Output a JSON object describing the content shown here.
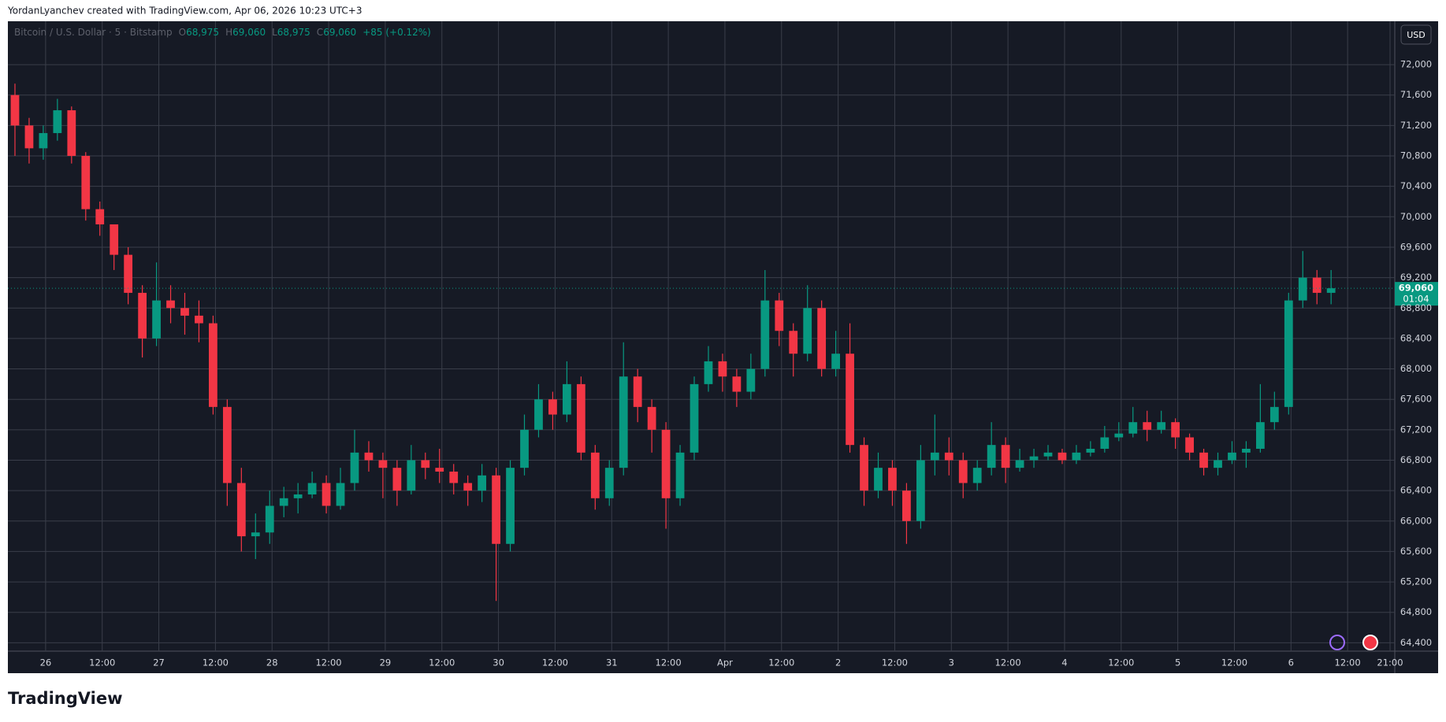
{
  "header": "YordanLyanchev created with TradingView.com, Apr 06, 2026 10:23 UTC+3",
  "brand": "TradingView",
  "chart_data": {
    "type": "candlestick",
    "symbol": "Bitcoin / U.S. Dollar · 5 · Bitstamp",
    "status": [
      {
        "prefix": "O",
        "value": "68,975"
      },
      {
        "prefix": "H",
        "value": "69,060"
      },
      {
        "prefix": "L",
        "value": "68,975"
      },
      {
        "prefix": "C",
        "value": "69,060"
      }
    ],
    "change": "+85 (+0.12%)",
    "currency": "USD",
    "last_price": {
      "value": 69060,
      "label": "69,060"
    },
    "countdown": "01:04",
    "up_color": "#089981",
    "down_color": "#f23645",
    "background": "#161a25",
    "grid_color": "#3a3e4a",
    "grid": true,
    "x": [
      -6.5,
      -3.5,
      -0.5,
      2.5,
      5.5,
      8.5,
      11.5,
      14.5,
      17.5,
      20.5,
      23.5,
      26.5,
      29.5,
      32.5,
      35.5,
      38.5,
      41.5,
      44.5,
      47.5,
      50.5,
      53.5,
      56.5,
      59.5,
      62.5,
      65.5,
      68.5,
      71.5,
      74.5,
      77.5,
      80.5,
      83.5,
      86.5,
      89.5,
      92.5,
      95.5,
      98.5,
      101.5,
      104.5,
      107.5,
      110.5,
      113.5,
      116.5,
      119.5,
      122.5,
      125.5,
      128.5,
      131.5,
      134.5,
      137.5,
      140.5,
      143.5,
      146.5,
      149.5,
      152.5,
      155.5,
      158.5,
      161.5,
      164.5,
      167.5,
      170.5,
      173.5,
      176.5,
      179.5,
      182.5,
      185.5,
      188.5,
      191.5,
      194.5,
      197.5,
      200.5,
      203.5,
      206.5,
      209.5,
      212.5,
      215.5,
      218.5,
      221.5,
      224.5,
      227.5,
      230.5,
      233.5,
      236.5,
      239.5,
      242.5,
      245.5,
      248.5,
      251.5,
      254.5,
      257.5,
      260.5,
      263.5,
      266.5,
      269.5,
      272.5
    ],
    "open": [
      71600,
      71200,
      70900,
      71100,
      71400,
      70800,
      70100,
      69900,
      69500,
      69000,
      68400,
      68900,
      68800,
      68700,
      68600,
      67500,
      66500,
      65800,
      65850,
      66200,
      66300,
      66350,
      66500,
      66200,
      66500,
      66900,
      66800,
      66700,
      66400,
      66800,
      66700,
      66650,
      66500,
      66400,
      66600,
      65700,
      66700,
      67200,
      67600,
      67400,
      67800,
      66900,
      66300,
      66700,
      67900,
      67500,
      67200,
      66300,
      66900,
      67800,
      68100,
      67900,
      67700,
      68000,
      68900,
      68500,
      68200,
      68800,
      68000,
      68200,
      67000,
      66400,
      66700,
      66400,
      66000,
      66800,
      66900,
      66800,
      66500,
      66700,
      67000,
      66700,
      66800,
      66850,
      66900,
      66800,
      66900,
      66950,
      67100,
      67150,
      67300,
      67200,
      67300,
      67100,
      66900,
      66700,
      66800,
      66900,
      66950,
      67300,
      67500,
      68900,
      69200,
      69000
    ],
    "high": [
      71750,
      71300,
      71200,
      71550,
      71450,
      70850,
      70200,
      69850,
      69600,
      69100,
      69400,
      69100,
      69000,
      68900,
      68700,
      67600,
      66700,
      66100,
      66400,
      66450,
      66500,
      66650,
      66600,
      66700,
      67200,
      67050,
      66900,
      66800,
      67000,
      66900,
      66950,
      66750,
      66600,
      66750,
      66700,
      66800,
      67400,
      67800,
      67700,
      68100,
      67900,
      67000,
      66800,
      68350,
      68000,
      67600,
      67300,
      67000,
      67900,
      68300,
      68200,
      68000,
      68200,
      69300,
      69000,
      68600,
      69100,
      68900,
      68500,
      68600,
      67100,
      66900,
      66800,
      66500,
      67000,
      67400,
      67100,
      66900,
      66800,
      67300,
      67100,
      66950,
      66950,
      67000,
      66950,
      67000,
      67050,
      67250,
      67300,
      67500,
      67450,
      67450,
      67350,
      67150,
      66950,
      66900,
      67050,
      67050,
      67800,
      67700,
      69000,
      69550,
      69300,
      69300
    ],
    "low": [
      70800,
      70700,
      70750,
      71000,
      70700,
      69950,
      69750,
      69300,
      68850,
      68150,
      68300,
      68600,
      68450,
      68350,
      67400,
      66200,
      65600,
      65500,
      65700,
      66050,
      66100,
      66300,
      66100,
      66150,
      66400,
      66650,
      66300,
      66200,
      66350,
      66550,
      66500,
      66350,
      66200,
      66250,
      64950,
      65600,
      66600,
      67100,
      67200,
      67300,
      66800,
      66150,
      66200,
      66600,
      67300,
      66900,
      65900,
      66200,
      66800,
      67700,
      67700,
      67500,
      67600,
      67900,
      68300,
      67900,
      68100,
      67900,
      67900,
      66900,
      66200,
      66300,
      66200,
      65700,
      65900,
      66600,
      66600,
      66300,
      66400,
      66600,
      66500,
      66650,
      66700,
      66800,
      66750,
      66750,
      66850,
      66900,
      67050,
      67100,
      67050,
      67150,
      66950,
      66800,
      66600,
      66600,
      66750,
      66700,
      66900,
      67200,
      67400,
      68800,
      68850,
      68850
    ],
    "close": [
      71200,
      70900,
      71100,
      71400,
      70800,
      70100,
      69900,
      69500,
      69000,
      68400,
      68900,
      68800,
      68700,
      68600,
      67500,
      66500,
      65800,
      65850,
      66200,
      66300,
      66350,
      66500,
      66200,
      66500,
      66900,
      66800,
      66700,
      66400,
      66800,
      66700,
      66650,
      66500,
      66400,
      66600,
      65700,
      66700,
      67200,
      67600,
      67400,
      67800,
      66900,
      66300,
      66700,
      67900,
      67500,
      67200,
      66300,
      66900,
      67800,
      68100,
      67900,
      67700,
      68000,
      68900,
      68500,
      68200,
      68800,
      68000,
      68200,
      67000,
      66400,
      66700,
      66400,
      66000,
      66800,
      66900,
      66800,
      66500,
      66700,
      67000,
      66700,
      66800,
      66850,
      66900,
      66800,
      66900,
      66950,
      67100,
      67150,
      67300,
      67200,
      67300,
      67100,
      66900,
      66700,
      66800,
      66900,
      66950,
      67300,
      67500,
      68900,
      69200,
      69000,
      69060
    ],
    "xlim": [
      -8,
      286
    ],
    "xticks": [
      {
        "value": 0,
        "label": "26"
      },
      {
        "value": 12,
        "label": "12:00"
      },
      {
        "value": 24,
        "label": "27"
      },
      {
        "value": 36,
        "label": "12:00"
      },
      {
        "value": 48,
        "label": "28"
      },
      {
        "value": 60,
        "label": "12:00"
      },
      {
        "value": 72,
        "label": "29"
      },
      {
        "value": 84,
        "label": "12:00"
      },
      {
        "value": 96,
        "label": "30"
      },
      {
        "value": 108,
        "label": "12:00"
      },
      {
        "value": 120,
        "label": "31"
      },
      {
        "value": 132,
        "label": "12:00"
      },
      {
        "value": 144,
        "label": "Apr"
      },
      {
        "value": 156,
        "label": "12:00"
      },
      {
        "value": 168,
        "label": "2"
      },
      {
        "value": 180,
        "label": "12:00"
      },
      {
        "value": 192,
        "label": "3"
      },
      {
        "value": 204,
        "label": "12:00"
      },
      {
        "value": 216,
        "label": "4"
      },
      {
        "value": 228,
        "label": "12:00"
      },
      {
        "value": 240,
        "label": "5"
      },
      {
        "value": 252,
        "label": "12:00"
      },
      {
        "value": 264,
        "label": "6"
      },
      {
        "value": 276,
        "label": "12:00"
      },
      {
        "value": 285,
        "label": "21:00"
      }
    ],
    "ylim": [
      64290,
      72570
    ],
    "yticks": [
      {
        "value": 64400,
        "label": "64,400"
      },
      {
        "value": 64800,
        "label": "64,800"
      },
      {
        "value": 65200,
        "label": "65,200"
      },
      {
        "value": 65600,
        "label": "65,600"
      },
      {
        "value": 66000,
        "label": "66,000"
      },
      {
        "value": 66400,
        "label": "66,400"
      },
      {
        "value": 66800,
        "label": "66,800"
      },
      {
        "value": 67200,
        "label": "67,200"
      },
      {
        "value": 67600,
        "label": "67,600"
      },
      {
        "value": 68000,
        "label": "68,000"
      },
      {
        "value": 68400,
        "label": "68,400"
      },
      {
        "value": 68800,
        "label": "68,800"
      },
      {
        "value": 69200,
        "label": "69,200"
      },
      {
        "value": 69600,
        "label": "69,600"
      },
      {
        "value": 70000,
        "label": "70,000"
      },
      {
        "value": 70400,
        "label": "70,400"
      },
      {
        "value": 70800,
        "label": "70,800"
      },
      {
        "value": 71200,
        "label": "71,200"
      },
      {
        "value": 71600,
        "label": "71,600"
      },
      {
        "value": 72000,
        "label": "72,000"
      }
    ]
  }
}
